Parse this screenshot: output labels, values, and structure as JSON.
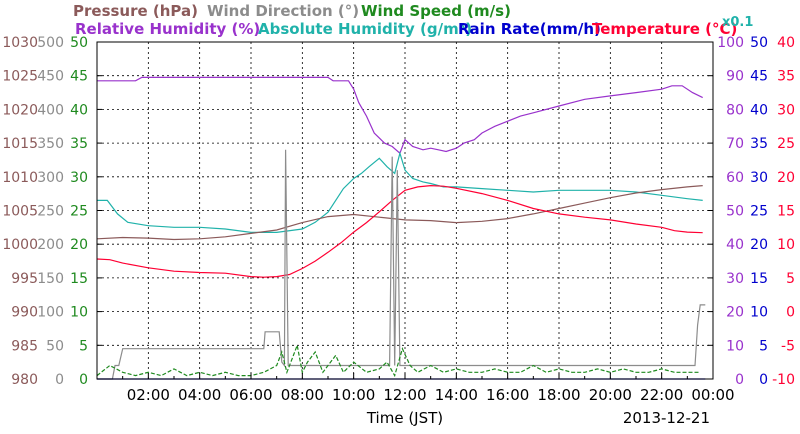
{
  "chart_data": {
    "type": "line",
    "date": "2013-12-21",
    "xlabel": "Time (JST)",
    "x_ticks": [
      "02:00",
      "04:00",
      "06:00",
      "08:00",
      "10:00",
      "12:00",
      "14:00",
      "16:00",
      "18:00",
      "20:00",
      "22:00",
      "00:00"
    ],
    "x_range_hours": [
      0,
      24
    ],
    "grid": true,
    "legend_top": [
      {
        "label": "Pressure (hPa)",
        "color": "#8b5a5a"
      },
      {
        "label": "Wind Direction (°)",
        "color": "#8c8c8c"
      },
      {
        "label": "Wind Speed (m/s)",
        "color": "#1f8a1f"
      }
    ],
    "legend_bottom": [
      {
        "label": "Relative Humidity (%)",
        "color": "#9932cc"
      },
      {
        "label": "Absolute Humidity (g/m³)",
        "color": "#20b2aa"
      },
      {
        "label": "Rain Rate(mm/h)",
        "color": "#0000cd"
      },
      {
        "label": "Temperature (°C)",
        "color": "#ff0033"
      },
      {
        "label": "x0.1",
        "color": "#20b2aa"
      }
    ],
    "axes": {
      "pressure": {
        "ticks": [
          "1030",
          "1025",
          "1020",
          "1015",
          "1010",
          "1005",
          "1000",
          "995",
          "990",
          "985",
          "980"
        ],
        "range": [
          980,
          1030
        ],
        "color": "#8b5a5a"
      },
      "wind_direction": {
        "ticks": [
          "500",
          "450",
          "400",
          "350",
          "300",
          "250",
          "200",
          "150",
          "100",
          "50",
          "0"
        ],
        "range": [
          0,
          500
        ],
        "color": "#8c8c8c"
      },
      "wind_speed": {
        "ticks": [
          "50",
          "45",
          "40",
          "35",
          "30",
          "25",
          "20",
          "15",
          "10",
          "5",
          "0"
        ],
        "range": [
          0,
          50
        ],
        "color": "#1f8a1f"
      },
      "humidity": {
        "ticks": [
          "100",
          "90",
          "80",
          "70",
          "60",
          "50",
          "40",
          "30",
          "20",
          "10",
          "0"
        ],
        "range": [
          0,
          100
        ],
        "color": "#9932cc"
      },
      "rain_rate": {
        "ticks": [
          "50",
          "45",
          "40",
          "35",
          "30",
          "25",
          "20",
          "15",
          "10",
          "5",
          "0"
        ],
        "range": [
          0,
          50
        ],
        "color": "#0000cd"
      },
      "temperature": {
        "ticks": [
          "40",
          "35",
          "30",
          "25",
          "20",
          "15",
          "10",
          "5",
          "0",
          "-5",
          "-10"
        ],
        "range": [
          -10,
          40
        ],
        "color": "#ff0033"
      }
    },
    "series": [
      {
        "name": "Relative Humidity (%)",
        "axis": "humidity",
        "color": "#9932cc",
        "x": [
          0,
          0.3,
          1.5,
          1.75,
          2.5,
          4,
          6,
          7,
          8,
          9,
          9.2,
          9.8,
          10,
          10.2,
          10.5,
          10.8,
          11.2,
          11.5,
          11.8,
          12,
          12.3,
          12.7,
          13,
          13.3,
          13.6,
          14,
          14.3,
          14.7,
          15,
          15.5,
          16,
          16.5,
          17,
          18,
          19,
          20,
          21,
          22,
          22.4,
          22.8,
          23.2,
          23.6
        ],
        "y": [
          88.5,
          88.5,
          88.5,
          89.5,
          89.5,
          89.5,
          89.5,
          89.5,
          89.5,
          89.5,
          88.5,
          88.5,
          86,
          82,
          78,
          73,
          70,
          69,
          67,
          71,
          69,
          68,
          68.5,
          68,
          67.5,
          68.5,
          70,
          71,
          73,
          75,
          76.5,
          78,
          79,
          81,
          83,
          84,
          85,
          86,
          87,
          87,
          85,
          83.5
        ]
      },
      {
        "name": "Absolute Humidity (g/m³)",
        "axis": "humidity",
        "color": "#20b2aa",
        "x": [
          0,
          0.4,
          0.8,
          1.2,
          2,
          3,
          4,
          5,
          6,
          7,
          8,
          8.5,
          9,
          9.3,
          9.6,
          10,
          10.3,
          10.6,
          11,
          11.3,
          11.6,
          11.8,
          12,
          12.3,
          12.7,
          13,
          13.5,
          14,
          15,
          16,
          17,
          18,
          19,
          20,
          21,
          22,
          23,
          23.6
        ],
        "y": [
          53,
          53,
          49,
          46.5,
          45.5,
          45,
          45,
          44.5,
          43.5,
          43.5,
          44.5,
          46.5,
          49.5,
          53,
          56.5,
          59.5,
          61,
          63,
          65.5,
          63,
          61,
          67,
          62,
          59.5,
          58.5,
          58,
          57,
          57,
          56.5,
          56,
          55.5,
          56,
          56,
          56,
          55.5,
          54.5,
          53.5,
          53
        ]
      },
      {
        "name": "Pressure (hPa)",
        "axis": "pressure",
        "color": "#8b5a5a",
        "x": [
          0,
          1,
          2,
          3,
          4,
          5,
          6,
          7,
          8,
          9,
          10,
          11,
          12,
          13,
          14,
          15,
          16,
          17,
          18,
          19,
          20,
          21,
          22,
          23,
          23.6
        ],
        "y": [
          1000.8,
          1001,
          1000.9,
          1000.7,
          1000.8,
          1001.1,
          1001.6,
          1002.1,
          1003.2,
          1004.1,
          1004.4,
          1004,
          1003.6,
          1003.5,
          1003.2,
          1003.4,
          1003.8,
          1004.5,
          1005.3,
          1006.1,
          1006.9,
          1007.6,
          1008.1,
          1008.5,
          1008.7
        ]
      },
      {
        "name": "Temperature (°C)",
        "axis": "temperature",
        "color": "#ff0033",
        "x": [
          0,
          0.5,
          1,
          2,
          3,
          4,
          5,
          6,
          6.5,
          7,
          7.5,
          8,
          8.5,
          9,
          9.5,
          10,
          10.5,
          11,
          11.5,
          12,
          12.5,
          13,
          13.5,
          14,
          15,
          16,
          17,
          18,
          19,
          20,
          21,
          22,
          22.5,
          23,
          23.6
        ],
        "y": [
          7.8,
          7.7,
          7.2,
          6.5,
          6,
          5.8,
          5.7,
          5.2,
          5.1,
          5.2,
          5.5,
          6.4,
          7.5,
          8.8,
          10.2,
          11.8,
          13.2,
          14.8,
          16.5,
          18,
          18.5,
          18.7,
          18.6,
          18.3,
          17.5,
          16.5,
          15.3,
          14.5,
          14,
          13.6,
          13,
          12.5,
          12,
          11.8,
          11.7
        ]
      },
      {
        "name": "Wind Direction (°)",
        "axis": "wind_direction",
        "color": "#8c8c8c",
        "x": [
          0,
          0.6,
          0.7,
          0.85,
          1,
          6.5,
          6.55,
          7.1,
          7.2,
          7.3,
          7.35,
          7.45,
          7.5,
          8,
          11,
          11.4,
          11.5,
          11.6,
          11.7,
          11.8,
          12,
          12.5,
          13,
          14,
          16,
          18,
          20,
          22,
          23,
          23.3,
          23.4,
          23.5,
          23.7
        ],
        "y": [
          0,
          0,
          20,
          20,
          45,
          45,
          70,
          70,
          25,
          20,
          340,
          20,
          20,
          20,
          20,
          20,
          330,
          20,
          310,
          20,
          20,
          20,
          20,
          20,
          20,
          20,
          20,
          20,
          20,
          20,
          80,
          110,
          110
        ]
      },
      {
        "name": "Wind Speed (m/s)",
        "axis": "wind_speed",
        "color": "#1f8a1f",
        "x": [
          0,
          0.5,
          1,
          1.5,
          2,
          2.5,
          3,
          3.5,
          4,
          4.5,
          5,
          5.5,
          6,
          6.5,
          7,
          7.2,
          7.4,
          7.6,
          7.8,
          8,
          8.2,
          8.5,
          8.8,
          9,
          9.3,
          9.6,
          10,
          10.5,
          11,
          11.3,
          11.6,
          11.9,
          12.2,
          12.5,
          13,
          13.5,
          14,
          14.5,
          15,
          15.5,
          16,
          16.5,
          17,
          17.5,
          18,
          18.5,
          19,
          19.5,
          20,
          20.5,
          21,
          21.5,
          22,
          22.5,
          23,
          23.5
        ],
        "y": [
          0.5,
          2,
          1,
          0.5,
          1,
          0.5,
          1.5,
          0.5,
          1,
          0.5,
          1,
          0.5,
          0.5,
          1,
          2,
          4,
          1,
          3,
          5,
          1,
          2.5,
          4,
          1,
          2,
          3.5,
          1,
          2.5,
          1,
          1.5,
          2.5,
          0.5,
          4.5,
          2,
          1,
          2,
          1,
          1.5,
          1,
          1,
          1.5,
          1,
          1,
          2,
          1,
          1.5,
          1,
          1,
          1.5,
          1,
          1.5,
          1,
          1,
          1.5,
          1,
          1,
          1
        ]
      },
      {
        "name": "Rain Rate(mm/h)",
        "axis": "rain_rate",
        "color": "#0000cd",
        "x": [
          0,
          23.7
        ],
        "y": [
          0,
          0
        ]
      }
    ]
  }
}
